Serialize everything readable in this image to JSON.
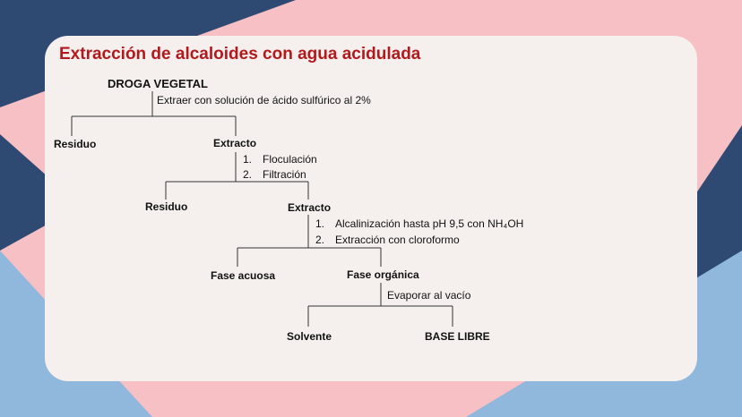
{
  "title": "Extracción de alcaloides con agua acidulada",
  "nodes": {
    "root": "DROGA VEGETAL",
    "residue1": "Residuo",
    "extract1": "Extracto",
    "residue2": "Residuo",
    "extract2": "Extracto",
    "aqueous": "Fase acuosa",
    "organic": "Fase orgánica",
    "solvent": "Solvente",
    "base": "BASE LIBRE"
  },
  "steps": {
    "step1": "Extraer con solución de ácido sulfúrico al 2%",
    "step2": [
      {
        "num": "1.",
        "text": "Floculación"
      },
      {
        "num": "2.",
        "text": "Filtración"
      }
    ],
    "step3": [
      {
        "num": "1.",
        "text": "Alcalinización hasta pH 9,5 con NH₄OH"
      },
      {
        "num": "2.",
        "text": "Extracción con cloroformo"
      }
    ],
    "step4": "Evaporar al vacío"
  },
  "colors": {
    "title": "#b3191c",
    "background_pink": "#f7c0c4",
    "background_navy": "#2f4a72",
    "background_blue": "#8fb8dc",
    "card": "#f5f0ee"
  }
}
